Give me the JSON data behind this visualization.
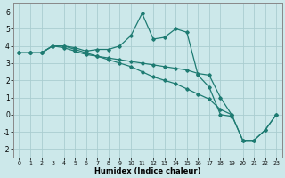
{
  "title": "",
  "xlabel": "Humidex (Indice chaleur)",
  "bg_color": "#cce8ea",
  "line_color": "#1e7b72",
  "grid_color": "#aacdd0",
  "xlim": [
    -0.5,
    23.5
  ],
  "ylim": [
    -2.5,
    6.5
  ],
  "xticks": [
    0,
    1,
    2,
    3,
    4,
    5,
    6,
    7,
    8,
    9,
    10,
    11,
    12,
    13,
    14,
    15,
    16,
    17,
    18,
    19,
    20,
    21,
    22,
    23
  ],
  "yticks": [
    -2,
    -1,
    0,
    1,
    2,
    3,
    4,
    5,
    6
  ],
  "curve1_x": [
    0,
    1,
    2,
    3,
    4,
    5,
    6,
    7,
    8,
    9,
    10,
    11,
    12,
    13,
    14,
    15,
    16,
    17,
    18,
    19
  ],
  "curve1_y": [
    3.6,
    3.6,
    3.6,
    4.0,
    4.0,
    3.9,
    3.7,
    3.8,
    3.8,
    4.0,
    4.6,
    5.9,
    4.4,
    4.5,
    5.0,
    4.8,
    2.3,
    1.6,
    0.0,
    -0.1
  ],
  "curve2_x": [
    0,
    1,
    2,
    3,
    4,
    5,
    6,
    7,
    8,
    9,
    10,
    11,
    12,
    13,
    14,
    15,
    16,
    17,
    18,
    19,
    20,
    21,
    22,
    23
  ],
  "curve2_y": [
    3.6,
    3.6,
    3.6,
    4.0,
    3.9,
    3.7,
    3.5,
    3.4,
    3.3,
    3.2,
    3.1,
    3.0,
    2.9,
    2.8,
    2.7,
    2.6,
    2.4,
    2.3,
    1.0,
    0.0,
    -1.5,
    -1.5,
    -0.9,
    0.0
  ],
  "curve3_x": [
    0,
    1,
    2,
    3,
    4,
    5,
    6,
    7,
    8,
    9,
    10,
    11,
    12,
    13,
    14,
    15,
    16,
    17,
    18,
    19,
    20,
    21,
    22,
    23
  ],
  "curve3_y": [
    3.6,
    3.6,
    3.6,
    4.0,
    4.0,
    3.8,
    3.6,
    3.4,
    3.2,
    3.0,
    2.8,
    2.5,
    2.2,
    2.0,
    1.8,
    1.5,
    1.2,
    0.9,
    0.3,
    0.0,
    -1.5,
    -1.5,
    -0.9,
    0.0
  ]
}
